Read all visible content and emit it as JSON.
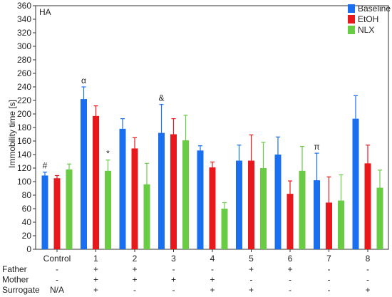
{
  "chart_data": {
    "type": "bar",
    "panel_label": "HA",
    "ylabel": "Immobility time [s]",
    "xlabel": "",
    "ylim": [
      0,
      360
    ],
    "yticks": [
      0,
      20,
      40,
      60,
      80,
      100,
      120,
      140,
      160,
      180,
      200,
      220,
      240,
      260,
      280,
      300,
      320,
      340,
      360
    ],
    "categories": [
      "Control",
      "1",
      "2",
      "3",
      "4",
      "5",
      "6",
      "7",
      "8"
    ],
    "legend_position": "top-right",
    "series": [
      {
        "name": "Baseline",
        "color": "#1a6ff0",
        "values": [
          109,
          222,
          178,
          172,
          146,
          131,
          140,
          102,
          193
        ],
        "errors": [
          5,
          18,
          15,
          42,
          7,
          23,
          26,
          40,
          34
        ]
      },
      {
        "name": "EtOH",
        "color": "#e8191c",
        "values": [
          105,
          197,
          149,
          170,
          121,
          131,
          82,
          69,
          127
        ],
        "errors": [
          4,
          15,
          16,
          23,
          8,
          38,
          19,
          38,
          27
        ]
      },
      {
        "name": "NLX",
        "color": "#6acc45",
        "values": [
          118,
          116,
          96,
          161,
          60,
          120,
          116,
          72,
          91
        ],
        "errors": [
          8,
          16,
          31,
          37,
          9,
          38,
          36,
          38,
          26
        ]
      }
    ],
    "annotations": [
      {
        "category": "Control",
        "series": "Baseline",
        "text": "#"
      },
      {
        "category": "1",
        "series": "Baseline",
        "text": "α"
      },
      {
        "category": "1",
        "series": "NLX",
        "text": "*"
      },
      {
        "category": "3",
        "series": "Baseline",
        "text": "&"
      },
      {
        "category": "7",
        "series": "Baseline",
        "text": "π"
      }
    ],
    "condition_rows": [
      {
        "label": "Father",
        "values": [
          "-",
          "+",
          "+",
          "-",
          "-",
          "+",
          "+",
          "-",
          "-"
        ]
      },
      {
        "label": "Mother",
        "values": [
          "-",
          "+",
          "+",
          "+",
          "+",
          "-",
          "-",
          "-",
          "-"
        ]
      },
      {
        "label": "Surrogate",
        "values": [
          "N/A",
          "+",
          "-",
          "-",
          "+",
          "+",
          "-",
          "-",
          "+"
        ]
      }
    ]
  }
}
